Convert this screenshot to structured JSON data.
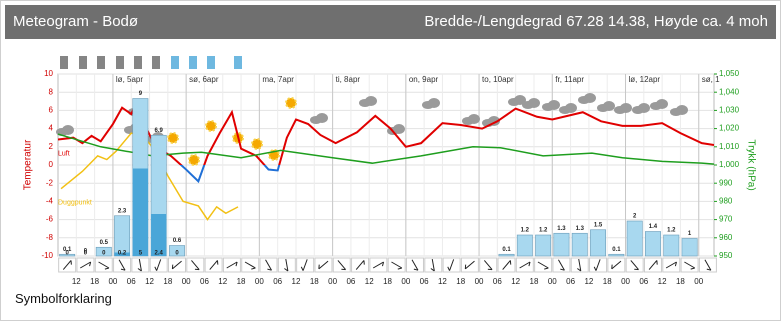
{
  "header": {
    "title": "Meteogram - Bodø",
    "location": "Bredde-/Lengdegrad 67.28 14.38, Høyde ca. 4 moh"
  },
  "chart_data": {
    "type": "line",
    "xlim": [
      6,
      221
    ],
    "xticks": [
      12,
      18,
      {
        "value": 24,
        "label": "00"
      },
      {
        "value": 30,
        "label": "06"
      },
      {
        "value": 36,
        "label": "12"
      },
      {
        "value": 42,
        "label": "18"
      },
      {
        "value": 48,
        "label": "00"
      },
      {
        "value": 54,
        "label": "06"
      },
      {
        "value": 60,
        "label": "12"
      },
      {
        "value": 66,
        "label": "18"
      },
      {
        "value": 72,
        "label": "00"
      },
      {
        "value": 78,
        "label": "06"
      },
      {
        "value": 84,
        "label": "12"
      },
      {
        "value": 90,
        "label": "18"
      },
      {
        "value": 96,
        "label": "00"
      },
      {
        "value": 102,
        "label": "06"
      },
      {
        "value": 108,
        "label": "12"
      },
      {
        "value": 114,
        "label": "18"
      },
      {
        "value": 120,
        "label": "00"
      },
      {
        "value": 126,
        "label": "06"
      },
      {
        "value": 132,
        "label": "12"
      },
      {
        "value": 138,
        "label": "18"
      },
      {
        "value": 144,
        "label": "00"
      },
      {
        "value": 150,
        "label": "06"
      },
      {
        "value": 156,
        "label": "12"
      },
      {
        "value": 162,
        "label": "18"
      },
      {
        "value": 168,
        "label": "00"
      },
      {
        "value": 174,
        "label": "06"
      },
      {
        "value": 180,
        "label": "12"
      },
      {
        "value": 186,
        "label": "18"
      },
      {
        "value": 192,
        "label": "00"
      },
      {
        "value": 198,
        "label": "06"
      },
      {
        "value": 204,
        "label": "12"
      },
      {
        "value": 210,
        "label": "18"
      },
      {
        "value": 216,
        "label": "00"
      }
    ],
    "day_labels": [
      {
        "value": 24,
        "label": "lø, 5apr"
      },
      {
        "value": 48,
        "label": "sø, 6apr"
      },
      {
        "value": 72,
        "label": "ma, 7apr"
      },
      {
        "value": 96,
        "label": "ti, 8apr"
      },
      {
        "value": 120,
        "label": "on, 9apr"
      },
      {
        "value": 144,
        "label": "to, 10apr"
      },
      {
        "value": 168,
        "label": "fr, 11apr"
      },
      {
        "value": 192,
        "label": "lø, 12apr"
      },
      {
        "value": 216,
        "label": "sø, 1"
      }
    ],
    "ylabel": "Temperatur",
    "ylim": [
      -10,
      10
    ],
    "yticks": [
      -10,
      -8,
      -6,
      -4,
      -2,
      0,
      2,
      4,
      6,
      8,
      10
    ],
    "y2label": "Trykk (hPa)",
    "y2lim": [
      950,
      1050
    ],
    "y2ticks": [
      950,
      960,
      970,
      980,
      990,
      {
        "value": 1000,
        "label": "1,000"
      },
      {
        "value": 1010,
        "label": "1,010"
      },
      {
        "value": 1020,
        "label": "1,020"
      },
      {
        "value": 1030,
        "label": "1,030"
      },
      {
        "value": 1040,
        "label": "1,040"
      },
      {
        "value": 1050,
        "label": "1,050"
      }
    ],
    "grid": true,
    "series": [
      {
        "name": "Luft",
        "color": "#e00000",
        "negative_color": "#1f6fd6",
        "x": [
          6,
          11,
          14,
          17,
          20,
          24,
          27,
          30,
          32,
          35,
          38,
          43,
          48,
          52,
          55,
          59,
          63,
          66,
          71,
          75,
          78,
          81,
          84,
          88,
          92,
          97,
          104,
          110,
          115,
          120,
          125,
          132,
          138,
          145,
          150,
          156,
          163,
          168,
          178,
          184,
          191,
          197,
          204,
          210,
          217,
          221
        ],
        "values": [
          2.8,
          3.0,
          2.4,
          3.2,
          2.6,
          4.5,
          6.3,
          5.6,
          7.0,
          4.0,
          2.0,
          1.0,
          -0.5,
          -1.8,
          1.0,
          3.5,
          5.8,
          1.8,
          1.0,
          -0.5,
          -0.6,
          3.0,
          5.0,
          4.5,
          3.3,
          2.4,
          3.6,
          5.4,
          4.0,
          2.0,
          2.4,
          4.6,
          4.4,
          4.0,
          4.8,
          6.2,
          5.3,
          5.0,
          5.8,
          4.8,
          4.3,
          4.3,
          4.6,
          3.5,
          2.4,
          2.2
        ]
      },
      {
        "name": "Duggpunkt",
        "color": "#f2c014",
        "x": [
          7,
          14,
          19,
          22,
          25,
          30,
          34,
          38,
          42,
          47,
          52,
          55,
          58,
          61,
          65
        ],
        "values": [
          -2.6,
          -0.7,
          1.0,
          0.6,
          1.5,
          3.5,
          3.2,
          1.5,
          -1.2,
          -4.0,
          -4.5,
          -6.0,
          -4.6,
          -5.3,
          -4.6
        ]
      },
      {
        "axis": "y2",
        "color": "#1e9e1e",
        "x": [
          6,
          20,
          37,
          47,
          53,
          66,
          79,
          96,
          109,
          125,
          142,
          151,
          165,
          181,
          191,
          204,
          217,
          221
        ],
        "values": [
          1017,
          1010,
          1005,
          1006.5,
          1007,
          1004,
          1008,
          1004,
          1001,
          1005,
          1010,
          1009.5,
          1005,
          1006.5,
          1004,
          1002,
          1001,
          1000.5
        ]
      },
      {
        "type": "bar",
        "color": "#a8d8ef",
        "min_color": "#4aa6d8",
        "x": [
          6,
          12,
          18,
          24,
          30,
          36,
          42,
          150,
          156,
          162,
          168,
          174,
          180,
          186,
          192,
          198,
          204,
          210
        ],
        "values": [
          0.1,
          0,
          0.5,
          2.3,
          9,
          6.9,
          0.6,
          0.1,
          1.2,
          1.2,
          1.3,
          1.3,
          1.5,
          0.1,
          2,
          1.4,
          1.2,
          1
        ],
        "min_values": [
          0,
          0,
          0,
          0.2,
          5,
          2.4,
          0,
          null,
          null,
          null,
          null,
          null,
          null,
          null,
          null,
          null,
          null,
          null
        ]
      }
    ]
  },
  "footer": {
    "link": "Symbolforklaring"
  }
}
